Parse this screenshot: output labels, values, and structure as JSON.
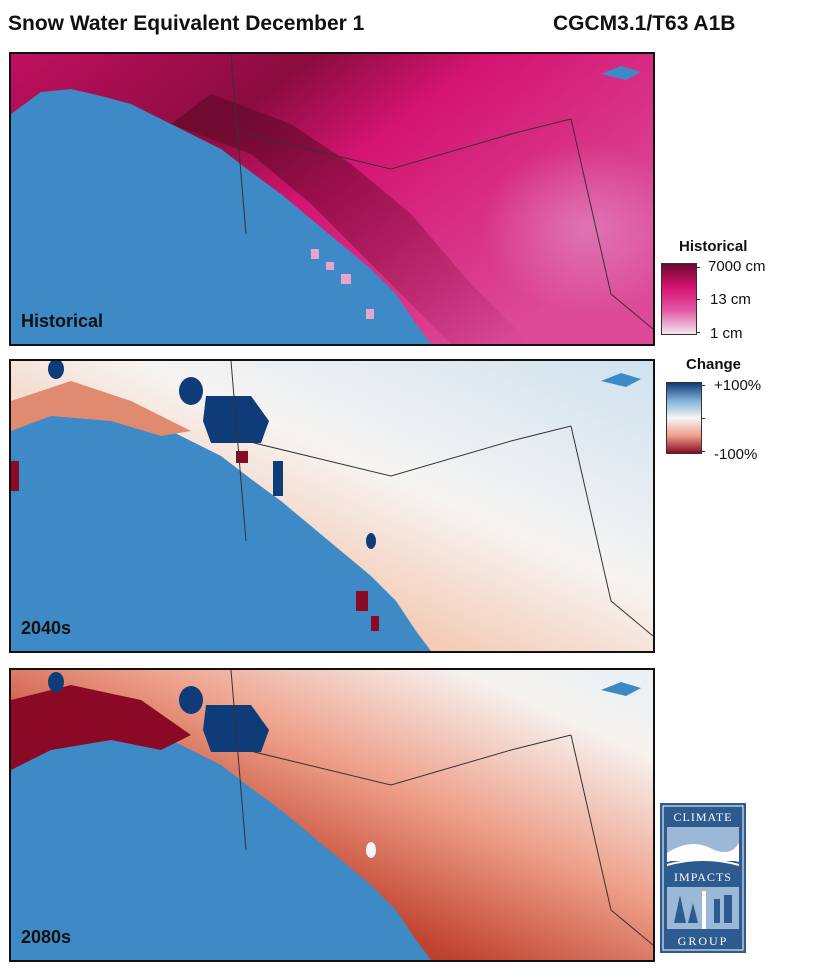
{
  "header": {
    "title": "Snow Water Equivalent December 1",
    "model": "CGCM3.1/T63 A1B"
  },
  "panels": [
    {
      "label": "Historical",
      "scheme": "historical"
    },
    {
      "label": "2040s",
      "scheme": "change"
    },
    {
      "label": "2080s",
      "scheme": "change"
    }
  ],
  "legend_historical": {
    "title": "Historical",
    "ticks": [
      "7000 cm",
      "13 cm",
      "1 cm"
    ],
    "colors": [
      "#6b0a2e",
      "#d41470",
      "#e35aa6",
      "#f2e8f2"
    ]
  },
  "legend_change": {
    "title": "Change",
    "ticks": [
      "+100%",
      "-100%"
    ],
    "colors": [
      "#0d3c78",
      "#7fb0d6",
      "#f6f6f6",
      "#eea08a",
      "#8a0a26"
    ]
  },
  "colors": {
    "ocean": "#3e8ac6",
    "border": "#111111"
  },
  "logo": {
    "words": [
      "CLIMATE",
      "IMPACTS",
      "GROUP"
    ]
  }
}
